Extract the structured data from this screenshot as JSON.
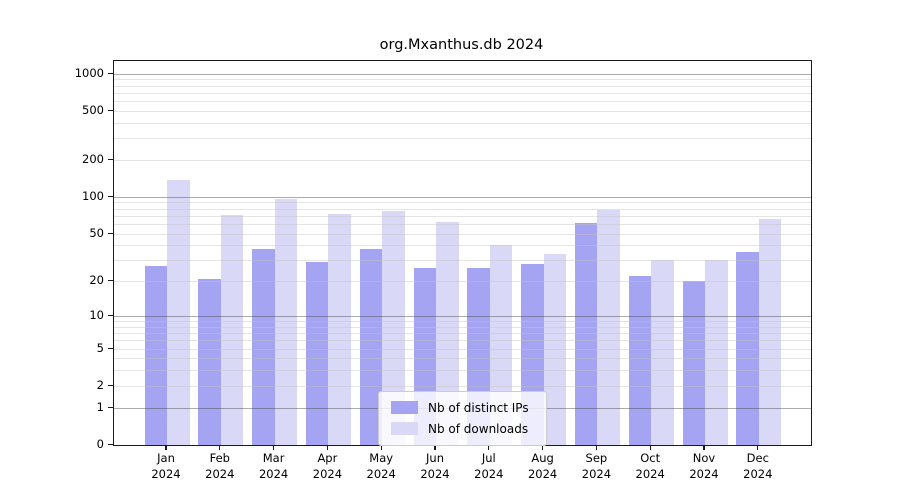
{
  "title": "org.Mxanthus.db 2024",
  "chart_data": {
    "type": "bar",
    "title": "org.Mxanthus.db 2024",
    "categories": [
      "Jan",
      "Feb",
      "Mar",
      "Apr",
      "May",
      "Jun",
      "Jul",
      "Aug",
      "Sep",
      "Oct",
      "Nov",
      "Dec"
    ],
    "category_year": "2024",
    "series": [
      {
        "name": "Nb of distinct IPs",
        "color": "#a4a4f2",
        "values": [
          27,
          21,
          37,
          29,
          37,
          26,
          26,
          28,
          61,
          22,
          20,
          35
        ]
      },
      {
        "name": "Nb of downloads",
        "color": "#d9d9f7",
        "values": [
          138,
          71,
          97,
          72,
          76,
          62,
          40,
          34,
          78,
          30,
          30,
          66
        ]
      }
    ],
    "y_axis": {
      "scale": "log1p",
      "ticks": [
        0,
        1,
        2,
        5,
        10,
        20,
        50,
        100,
        200,
        500,
        1000
      ],
      "range_max": 1260,
      "grid": "major-and-minor"
    },
    "x_axis": {
      "label_lines": 2
    },
    "legend": {
      "position": "inside-bottom-center",
      "entries": [
        "Nb of distinct IPs",
        "Nb of downloads"
      ]
    },
    "colors": {
      "major_grid": "#ababab",
      "minor_grid": "#e6e6e6",
      "axis": "#1a1a1a",
      "background": "#ffffff"
    }
  }
}
